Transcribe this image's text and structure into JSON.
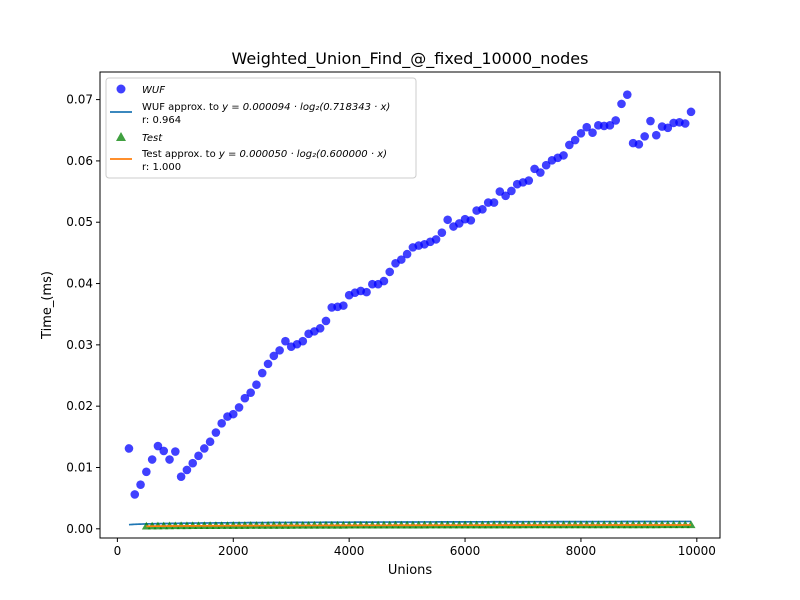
{
  "chart_data": {
    "type": "scatter",
    "title": "Weighted_Union_Find_@_fixed_10000_nodes",
    "xlabel": "Unions",
    "ylabel": "Time_(ms)",
    "xlim": [
      -300,
      10400
    ],
    "ylim": [
      -0.0015,
      0.0745
    ],
    "x_ticks": [
      0,
      2000,
      4000,
      6000,
      8000,
      10000
    ],
    "y_ticks": [
      0.0,
      0.01,
      0.02,
      0.03,
      0.04,
      0.05,
      0.06,
      0.07
    ],
    "x_tick_labels": [
      "0",
      "2000",
      "4000",
      "6000",
      "8000",
      "10000"
    ],
    "y_tick_labels": [
      "0.00",
      "0.01",
      "0.02",
      "0.03",
      "0.04",
      "0.05",
      "0.06",
      "0.07"
    ],
    "grid": false,
    "legend_position": "top-left",
    "legend": {
      "wuf_label": "WUF",
      "wuf_fit_prefix": "WUF approx. to ",
      "wuf_fit_eq": "y = 0.000094 · log₂(0.718343 · x)",
      "wuf_r": "r: 0.964",
      "test_label": "Test",
      "test_fit_prefix": "Test approx. to ",
      "test_fit_eq": "y = 0.000050 · log₂(0.600000 · x)",
      "test_r": "r: 1.000"
    },
    "series": [
      {
        "name": "WUF",
        "marker": "circle",
        "color": "#0000ff",
        "x": [
          200,
          300,
          400,
          500,
          600,
          700,
          800,
          900,
          1000,
          1100,
          1200,
          1300,
          1400,
          1500,
          1600,
          1700,
          1800,
          1900,
          2000,
          2100,
          2200,
          2300,
          2400,
          2500,
          2600,
          2700,
          2800,
          2900,
          3000,
          3100,
          3200,
          3300,
          3400,
          3500,
          3600,
          3700,
          3800,
          3900,
          4000,
          4100,
          4200,
          4300,
          4400,
          4500,
          4600,
          4700,
          4800,
          4900,
          5000,
          5100,
          5200,
          5300,
          5400,
          5500,
          5600,
          5700,
          5800,
          5900,
          6000,
          6100,
          6200,
          6300,
          6400,
          6500,
          6600,
          6700,
          6800,
          6900,
          7000,
          7100,
          7200,
          7300,
          7400,
          7500,
          7600,
          7700,
          7800,
          7900,
          8000,
          8100,
          8200,
          8300,
          8400,
          8500,
          8600,
          8700,
          8800,
          8900,
          9000,
          9100,
          9200,
          9300,
          9400,
          9500,
          9600,
          9700,
          9800,
          9900
        ],
        "y": [
          0.0131,
          0.0056,
          0.0072,
          0.0093,
          0.0113,
          0.0135,
          0.0127,
          0.0113,
          0.0126,
          0.0085,
          0.0096,
          0.0107,
          0.0119,
          0.0131,
          0.0142,
          0.0157,
          0.0172,
          0.0183,
          0.0187,
          0.0198,
          0.0213,
          0.0222,
          0.0235,
          0.0254,
          0.0269,
          0.0282,
          0.0291,
          0.0306,
          0.0297,
          0.0301,
          0.0306,
          0.0318,
          0.0322,
          0.0327,
          0.0339,
          0.0361,
          0.0362,
          0.0364,
          0.0381,
          0.0385,
          0.0388,
          0.0386,
          0.0399,
          0.0399,
          0.0404,
          0.0419,
          0.0433,
          0.0439,
          0.0448,
          0.0459,
          0.0462,
          0.0464,
          0.0468,
          0.0472,
          0.0483,
          0.0504,
          0.0493,
          0.0498,
          0.0505,
          0.0503,
          0.0519,
          0.0521,
          0.0532,
          0.0532,
          0.055,
          0.0543,
          0.0551,
          0.0562,
          0.0565,
          0.0568,
          0.0587,
          0.0581,
          0.0593,
          0.0601,
          0.0605,
          0.0609,
          0.0626,
          0.0634,
          0.0645,
          0.0655,
          0.0646,
          0.0658,
          0.0657,
          0.0658,
          0.0666,
          0.0693,
          0.0708,
          0.0629,
          0.0627,
          0.064,
          0.0665,
          0.0642,
          0.0656,
          0.0654,
          0.0662,
          0.0663,
          0.0661,
          0.068
        ]
      },
      {
        "name": "Test",
        "marker": "triangle",
        "color": "#008000",
        "x_start": 500,
        "x_end": 9900,
        "x_step": 100,
        "coef": 5e-05,
        "k": 0.6
      }
    ],
    "fits": [
      {
        "name": "WUF approx.",
        "color": "#1f77b4",
        "coef": 9.4e-05,
        "k": 0.718343,
        "x_range": [
          200,
          9900
        ]
      },
      {
        "name": "Test approx.",
        "color": "#ff7f0e",
        "coef": 5e-05,
        "k": 0.6,
        "x_range": [
          500,
          9900
        ]
      }
    ]
  }
}
